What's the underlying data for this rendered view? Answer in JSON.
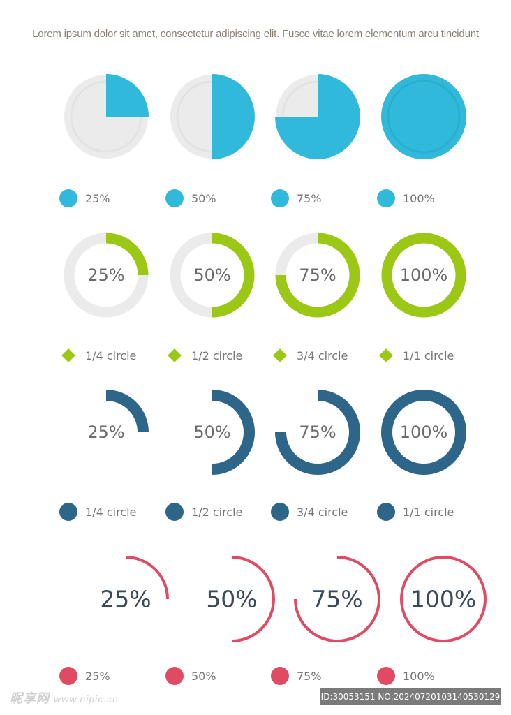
{
  "header": {
    "caption": "Lorem ipsum dolor sit amet, consectetur adipiscing elit. Fusce vitae lorem elementum arcu tincidunt"
  },
  "colors": {
    "track": "#ebebeb",
    "cyan": "#31b9dc",
    "green": "#9bc814",
    "navy": "#2d6689",
    "red": "#e04a62"
  },
  "rows": [
    {
      "style": "pie",
      "color": "cyan",
      "items": [
        {
          "fraction": 0.25,
          "legend": "25%"
        },
        {
          "fraction": 0.5,
          "legend": "50%"
        },
        {
          "fraction": 0.75,
          "legend": "75%"
        },
        {
          "fraction": 1.0,
          "legend": "100%"
        }
      ],
      "marker": "circle-icon"
    },
    {
      "style": "ring-track",
      "color": "green",
      "items": [
        {
          "fraction": 0.25,
          "center": "25%",
          "legend": "1/4 circle"
        },
        {
          "fraction": 0.5,
          "center": "50%",
          "legend": "1/2 circle"
        },
        {
          "fraction": 0.75,
          "center": "75%",
          "legend": "3/4 circle"
        },
        {
          "fraction": 1.0,
          "center": "100%",
          "legend": "1/1 circle"
        }
      ],
      "marker": "diamond-icon"
    },
    {
      "style": "ring",
      "color": "navy",
      "items": [
        {
          "fraction": 0.25,
          "center": "25%",
          "legend": "1/4 circle"
        },
        {
          "fraction": 0.5,
          "center": "50%",
          "legend": "1/2 circle"
        },
        {
          "fraction": 0.75,
          "center": "75%",
          "legend": "3/4 circle"
        },
        {
          "fraction": 1.0,
          "center": "100%",
          "legend": "1/1 circle"
        }
      ],
      "marker": "circle-icon"
    },
    {
      "style": "thin-ring",
      "color": "red",
      "items": [
        {
          "fraction": 0.25,
          "center": "25%",
          "legend": "25%"
        },
        {
          "fraction": 0.5,
          "center": "50%",
          "legend": "50%"
        },
        {
          "fraction": 0.75,
          "center": "75%",
          "legend": "75%"
        },
        {
          "fraction": 1.0,
          "center": "100%",
          "legend": "100%"
        }
      ],
      "marker": "circle-icon"
    }
  ],
  "watermark": {
    "site": "昵享网",
    "url": "www.nipic.cn",
    "id_text": "ID:30053151 NO:20240720103140530129"
  }
}
